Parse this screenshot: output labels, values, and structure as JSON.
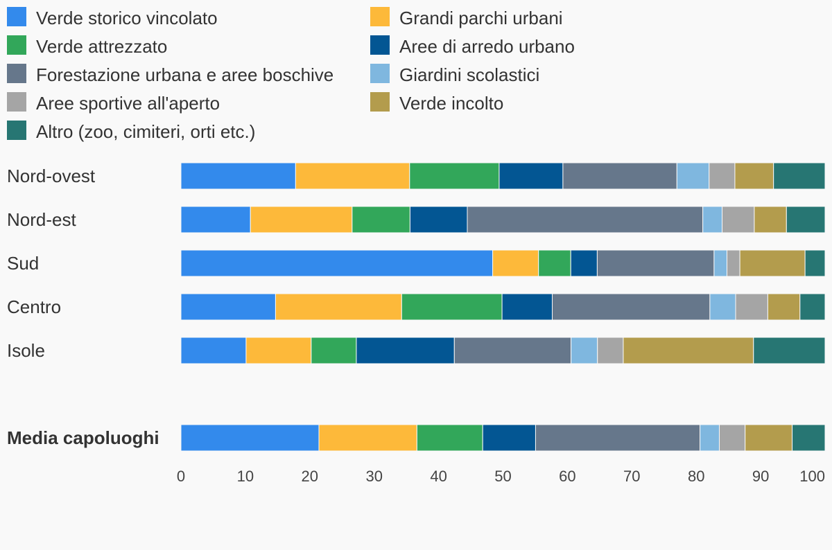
{
  "chart_data": {
    "type": "bar",
    "orientation": "horizontal",
    "stacked": true,
    "categories": [
      "Nord-ovest",
      "Nord-est",
      "Sud",
      "Centro",
      "Isole",
      "Media capoluoghi"
    ],
    "emphasized_category": "Media capoluoghi",
    "series": [
      {
        "name": "Verde storico vincolato",
        "color": "#338aec",
        "values": [
          17.8,
          10.8,
          48.3,
          14.7,
          10.1,
          21.4
        ]
      },
      {
        "name": "Grandi parchi urbani",
        "color": "#fdb93a",
        "values": [
          17.7,
          15.8,
          7.1,
          19.6,
          10.1,
          15.2
        ]
      },
      {
        "name": "Verde attrezzato",
        "color": "#32a75a",
        "values": [
          13.9,
          9.0,
          5.0,
          15.6,
          7.0,
          10.2
        ]
      },
      {
        "name": "Aree di arredo urbano",
        "color": "#035693",
        "values": [
          9.9,
          8.9,
          4.1,
          7.8,
          15.2,
          8.2
        ]
      },
      {
        "name": "Forestazione urbana e aree boschive",
        "color": "#66778b",
        "values": [
          17.7,
          36.6,
          18.1,
          24.5,
          18.1,
          25.5
        ]
      },
      {
        "name": "Giardini scolastici",
        "color": "#7fb7df",
        "values": [
          5.0,
          3.0,
          2.0,
          4.0,
          4.1,
          3.0
        ]
      },
      {
        "name": "Aree sportive all'aperto",
        "color": "#a5a5a5",
        "values": [
          4.0,
          5.0,
          2.0,
          5.0,
          4.0,
          4.0
        ]
      },
      {
        "name": "Verde incolto",
        "color": "#b39c4d",
        "values": [
          6.0,
          5.0,
          10.1,
          5.0,
          20.2,
          7.3
        ]
      },
      {
        "name": "Altro (zoo, cimiteri, orti etc.)",
        "color": "#277673",
        "values": [
          8.0,
          6.0,
          3.1,
          3.9,
          11.1,
          5.1
        ]
      }
    ],
    "xlim": [
      0,
      100
    ],
    "xticks": [
      "0",
      "10",
      "20",
      "30",
      "40",
      "50",
      "60",
      "70",
      "80",
      "90",
      "100"
    ],
    "legend_position": "top",
    "grid": false
  }
}
